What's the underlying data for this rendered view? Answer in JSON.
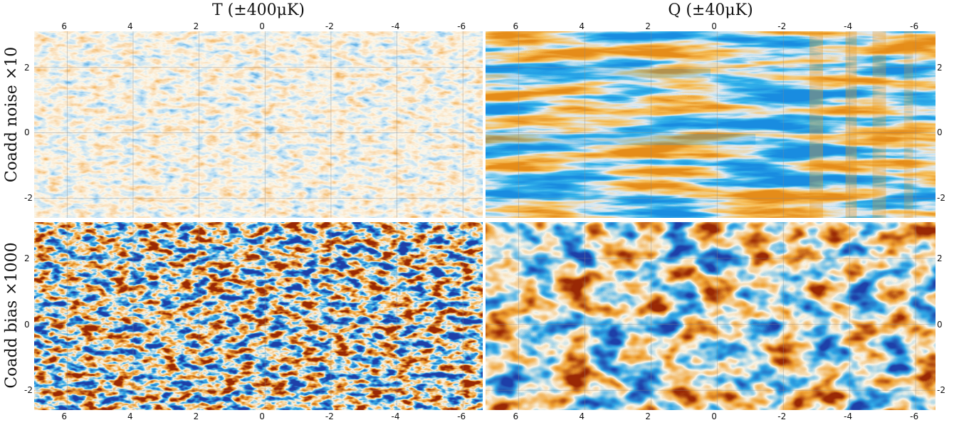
{
  "columns": {
    "t_title": "T (±400μK)",
    "q_title": "Q (±40μK)"
  },
  "rows": {
    "noise_label": "Coadd noise ×10",
    "bias_label": "Coadd bias ×1000"
  },
  "axes": {
    "x_ticks": [
      "6",
      "4",
      "2",
      "0",
      "-2",
      "-4",
      "-6"
    ],
    "y_ticks": [
      "2",
      "0",
      "-2"
    ]
  },
  "colormap": {
    "low": "#1e3fa8",
    "low_mid": "#2ea6e6",
    "neutral": "#fbf4e8",
    "high_mid": "#f0a030",
    "high": "#9a2a05"
  }
}
